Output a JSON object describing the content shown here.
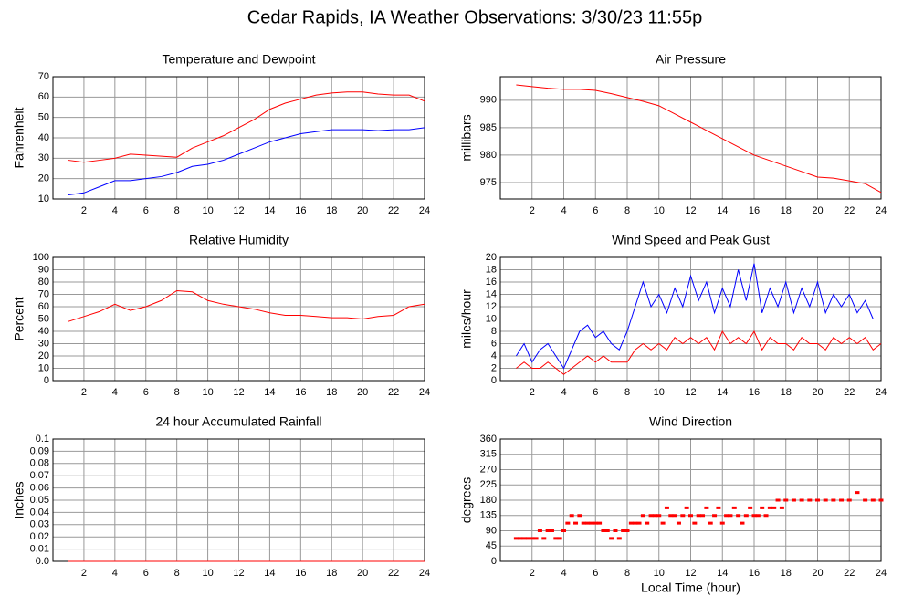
{
  "title": "Cedar Rapids, IA Weather Observations: 3/30/23 11:55p",
  "chart_data": [
    {
      "type": "line",
      "title": "Temperature and Dewpoint",
      "ylabel": "Fahrenheit",
      "grid": true,
      "xlim": [
        0,
        24
      ],
      "xticks": [
        2,
        4,
        6,
        8,
        10,
        12,
        14,
        16,
        18,
        20,
        22,
        24
      ],
      "ylim": [
        10,
        70
      ],
      "yticks": [
        10,
        20,
        30,
        40,
        50,
        60,
        70
      ],
      "x": [
        1,
        2,
        3,
        4,
        5,
        6,
        7,
        8,
        9,
        10,
        11,
        12,
        13,
        14,
        15,
        16,
        17,
        18,
        19,
        20,
        21,
        22,
        23,
        24
      ],
      "series": [
        {
          "color": "#ff0000",
          "values": [
            29,
            28,
            29,
            30,
            32,
            31.5,
            31,
            30.5,
            35,
            38,
            41,
            45,
            49,
            54,
            57,
            59,
            61,
            62,
            62.5,
            62.5,
            61.5,
            61,
            61,
            58
          ]
        },
        {
          "color": "#0000ff",
          "values": [
            12,
            13,
            16,
            19,
            19,
            20,
            21,
            23,
            26,
            27,
            29,
            32,
            35,
            38,
            40,
            42,
            43,
            44,
            44,
            44,
            43.5,
            44,
            44,
            45
          ]
        }
      ]
    },
    {
      "type": "line",
      "title": "Air Pressure",
      "ylabel": "millibars",
      "grid": true,
      "xlim": [
        0,
        24
      ],
      "xticks": [
        2,
        4,
        6,
        8,
        10,
        12,
        14,
        16,
        18,
        20,
        22,
        24
      ],
      "ylim": [
        972,
        994.3
      ],
      "yticks": [
        975,
        980,
        985,
        990
      ],
      "x": [
        1,
        2,
        3,
        4,
        5,
        6,
        7,
        8,
        9,
        10,
        11,
        12,
        13,
        14,
        15,
        16,
        17,
        18,
        19,
        20,
        21,
        22,
        23,
        24
      ],
      "series": [
        {
          "color": "#ff0000",
          "values": [
            992.8,
            992.5,
            992.2,
            992,
            992,
            991.8,
            991.2,
            990.5,
            989.8,
            989,
            987.5,
            986,
            984.5,
            983,
            981.5,
            980,
            979,
            978,
            977,
            976,
            975.8,
            975.3,
            974.8,
            973.2
          ]
        }
      ]
    },
    {
      "type": "line",
      "title": "Relative Humidity",
      "ylabel": "Percent",
      "grid": true,
      "xlim": [
        0,
        24
      ],
      "xticks": [
        2,
        4,
        6,
        8,
        10,
        12,
        14,
        16,
        18,
        20,
        22,
        24
      ],
      "ylim": [
        0,
        100
      ],
      "yticks": [
        0,
        10,
        20,
        30,
        40,
        50,
        60,
        70,
        80,
        90,
        100
      ],
      "x": [
        1,
        2,
        3,
        4,
        5,
        6,
        7,
        8,
        9,
        10,
        11,
        12,
        13,
        14,
        15,
        16,
        17,
        18,
        19,
        20,
        21,
        22,
        23,
        24
      ],
      "series": [
        {
          "color": "#ff0000",
          "values": [
            48,
            52,
            56,
            62,
            57,
            60,
            65,
            73,
            72,
            65,
            62,
            60,
            58,
            55,
            53,
            53,
            52,
            51,
            51,
            50,
            52,
            53,
            60,
            62
          ]
        }
      ]
    },
    {
      "type": "line",
      "title": "Wind Speed and Peak Gust",
      "ylabel": "miles/hour",
      "grid": true,
      "xlim": [
        0,
        24
      ],
      "xticks": [
        2,
        4,
        6,
        8,
        10,
        12,
        14,
        16,
        18,
        20,
        22,
        24
      ],
      "ylim": [
        0,
        20
      ],
      "yticks": [
        0,
        2,
        4,
        6,
        8,
        10,
        12,
        14,
        16,
        18,
        20
      ],
      "x": [
        1,
        1.5,
        2,
        2.5,
        3,
        3.5,
        4,
        4.5,
        5,
        5.5,
        6,
        6.5,
        7,
        7.5,
        8,
        8.5,
        9,
        9.5,
        10,
        10.5,
        11,
        11.5,
        12,
        12.5,
        13,
        13.5,
        14,
        14.5,
        15,
        15.5,
        16,
        16.5,
        17,
        17.5,
        18,
        18.5,
        19,
        19.5,
        20,
        20.5,
        21,
        21.5,
        22,
        22.5,
        23,
        23.5,
        24
      ],
      "series": [
        {
          "color": "#0000ff",
          "values": [
            4,
            6,
            3,
            5,
            6,
            4,
            2,
            5,
            8,
            9,
            7,
            8,
            6,
            5,
            8,
            12,
            16,
            12,
            14,
            11,
            15,
            12,
            17,
            13,
            16,
            11,
            15,
            12,
            18,
            13,
            19,
            11,
            15,
            12,
            16,
            11,
            15,
            12,
            16,
            11,
            14,
            12,
            14,
            11,
            13,
            10,
            10
          ]
        },
        {
          "color": "#ff0000",
          "values": [
            2,
            3,
            2,
            2,
            3,
            2,
            1,
            2,
            3,
            4,
            3,
            4,
            3,
            3,
            3,
            5,
            6,
            5,
            6,
            5,
            7,
            6,
            7,
            6,
            7,
            5,
            8,
            6,
            7,
            6,
            8,
            5,
            7,
            6,
            6,
            5,
            7,
            6,
            6,
            5,
            7,
            6,
            7,
            6,
            7,
            5,
            6
          ]
        }
      ]
    },
    {
      "type": "line",
      "title": "24 hour Accumulated Rainfall",
      "ylabel": "Inches",
      "grid": true,
      "xlim": [
        0,
        24
      ],
      "xticks": [
        2,
        4,
        6,
        8,
        10,
        12,
        14,
        16,
        18,
        20,
        22,
        24
      ],
      "ylim": [
        0,
        0.1
      ],
      "yticks": [
        {
          "value": 0,
          "label": "0.0"
        },
        0.01,
        0.02,
        0.03,
        0.04,
        0.05,
        0.06,
        0.07,
        0.08,
        0.09,
        0.1
      ],
      "x": [
        1,
        24
      ],
      "series": [
        {
          "color": "#ff0000",
          "values": [
            0,
            0
          ]
        }
      ]
    },
    {
      "type": "scatter",
      "title": "Wind Direction",
      "ylabel": "degrees",
      "xlabel": "Local Time (hour)",
      "grid": true,
      "xlim": [
        0,
        24
      ],
      "xticks": [
        2,
        4,
        6,
        8,
        10,
        12,
        14,
        16,
        18,
        20,
        22,
        24
      ],
      "ylim": [
        0,
        360
      ],
      "yticks": [
        0,
        45,
        90,
        135,
        180,
        225,
        270,
        315,
        360
      ],
      "x": [
        1,
        1.25,
        1.5,
        1.75,
        2,
        2.25,
        2.5,
        2.75,
        3,
        3.25,
        3.5,
        3.75,
        4,
        4.25,
        4.5,
        4.75,
        5,
        5.25,
        5.5,
        5.75,
        6,
        6.25,
        6.5,
        6.75,
        7,
        7.25,
        7.5,
        7.75,
        8,
        8.25,
        8.5,
        8.75,
        9,
        9.25,
        9.5,
        9.75,
        10,
        10.25,
        10.5,
        10.75,
        11,
        11.25,
        11.5,
        11.75,
        12,
        12.25,
        12.5,
        12.75,
        13,
        13.25,
        13.5,
        13.75,
        14,
        14.25,
        14.5,
        14.75,
        15,
        15.25,
        15.5,
        15.75,
        16,
        16.25,
        16.5,
        16.75,
        17,
        17.25,
        17.5,
        17.75,
        18,
        18.5,
        19,
        19.5,
        20,
        20.5,
        21,
        21.5,
        22,
        22.5,
        23,
        23.5,
        24
      ],
      "series": [
        {
          "color": "#ff0000",
          "values": [
            67.5,
            67.5,
            67.5,
            67.5,
            67.5,
            67.5,
            90,
            67.5,
            90,
            90,
            67.5,
            67.5,
            90,
            112.5,
            135,
            112.5,
            135,
            112.5,
            112.5,
            112.5,
            112.5,
            112.5,
            90,
            90,
            67.5,
            90,
            67.5,
            90,
            90,
            112.5,
            112.5,
            112.5,
            135,
            112.5,
            135,
            135,
            135,
            112.5,
            157.5,
            135,
            135,
            112.5,
            135,
            157.5,
            135,
            112.5,
            135,
            135,
            157.5,
            112.5,
            135,
            157.5,
            112.5,
            135,
            135,
            157.5,
            135,
            112.5,
            135,
            157.5,
            135,
            135,
            157.5,
            135,
            157.5,
            157.5,
            180,
            157.5,
            180,
            180,
            180,
            180,
            180,
            180,
            180,
            180,
            180,
            202.5,
            180,
            180,
            180
          ]
        }
      ]
    }
  ]
}
